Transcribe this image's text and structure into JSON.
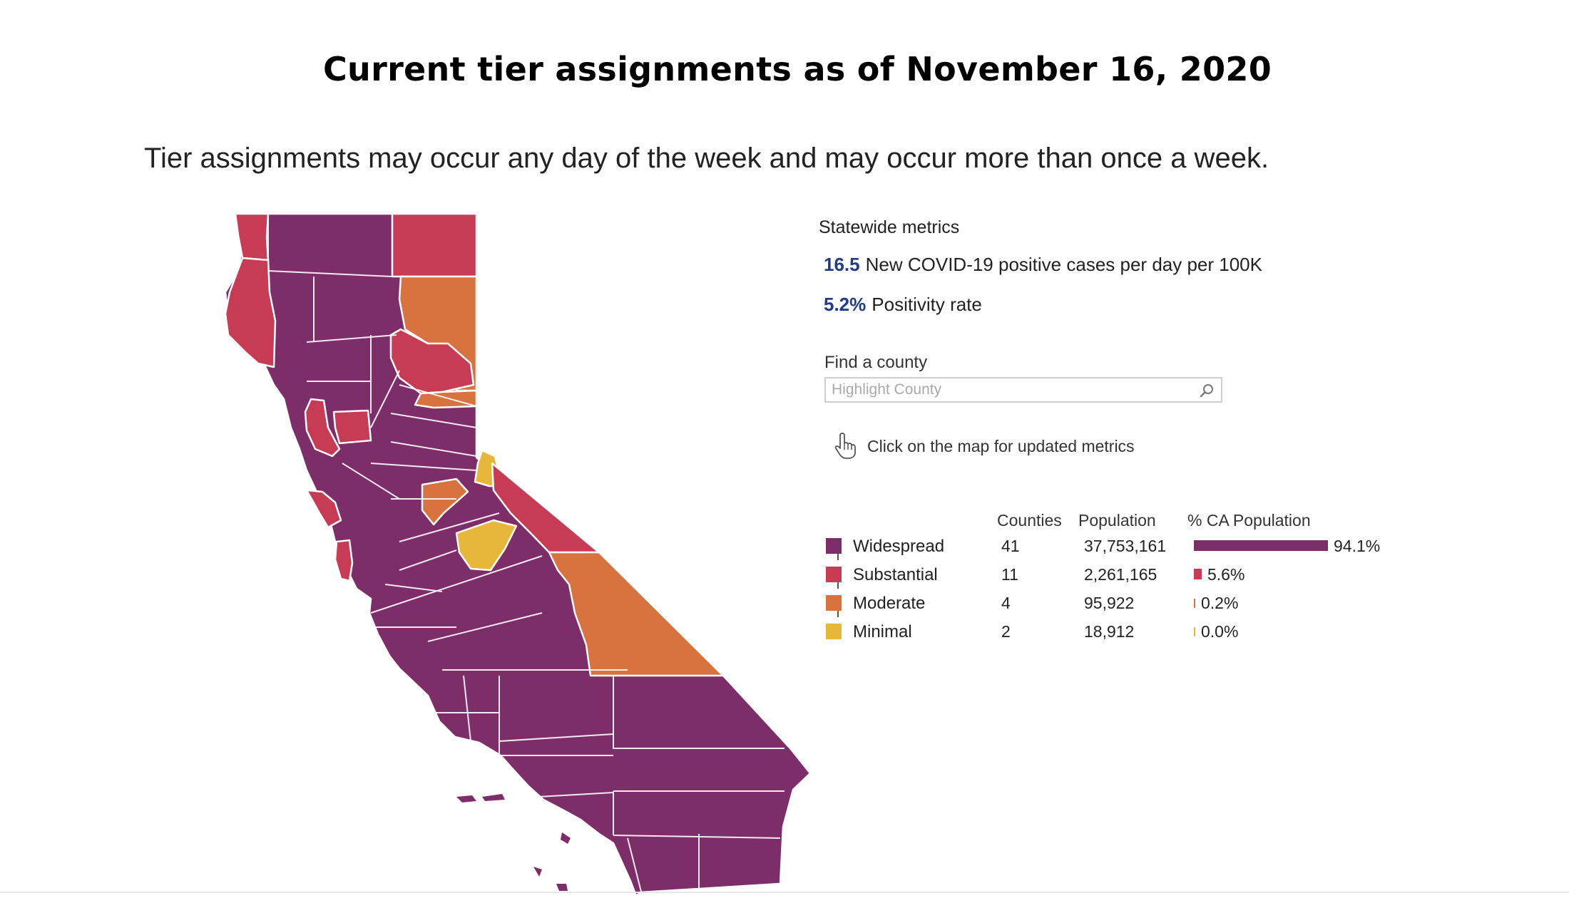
{
  "page": {
    "title": "Current tier assignments as of November 16, 2020",
    "subtitle": "Tier assignments may occur any day of the week and may occur more than once a week."
  },
  "colors": {
    "widespread": "#7d2d67",
    "substantial": "#c73b55",
    "moderate": "#d8733f",
    "minimal": "#e6b73a",
    "metric_value": "#1f3b8a",
    "county_border": "#ffffff"
  },
  "statewide": {
    "heading": "Statewide metrics",
    "metrics": [
      {
        "value": "16.5",
        "label": "New COVID-19 positive cases per day per 100K"
      },
      {
        "value": "5.2%",
        "label": "Positivity rate"
      }
    ]
  },
  "search": {
    "label": "Find a county",
    "placeholder": "Highlight County",
    "icon": "magnifier-icon"
  },
  "hint": {
    "icon": "pointer-hand-icon",
    "text": "Click on the map for updated metrics"
  },
  "legend": {
    "headers": {
      "counties": "Counties",
      "population": "Population",
      "pct": "% CA Population"
    },
    "tiers": [
      {
        "name": "Widespread",
        "counties": "41",
        "population": "37,753,161",
        "pct_label": "94.1%",
        "pct": 94.1,
        "color": "#7d2d67"
      },
      {
        "name": "Substantial",
        "counties": "11",
        "population": "2,261,165",
        "pct_label": "5.6%",
        "pct": 5.6,
        "color": "#c73b55"
      },
      {
        "name": "Moderate",
        "counties": "4",
        "population": "95,922",
        "pct_label": "0.2%",
        "pct": 0.2,
        "color": "#d8733f"
      },
      {
        "name": "Minimal",
        "counties": "2",
        "population": "18,912",
        "pct_label": "0.0%",
        "pct": 0.0,
        "color": "#e6b73a"
      }
    ]
  }
}
